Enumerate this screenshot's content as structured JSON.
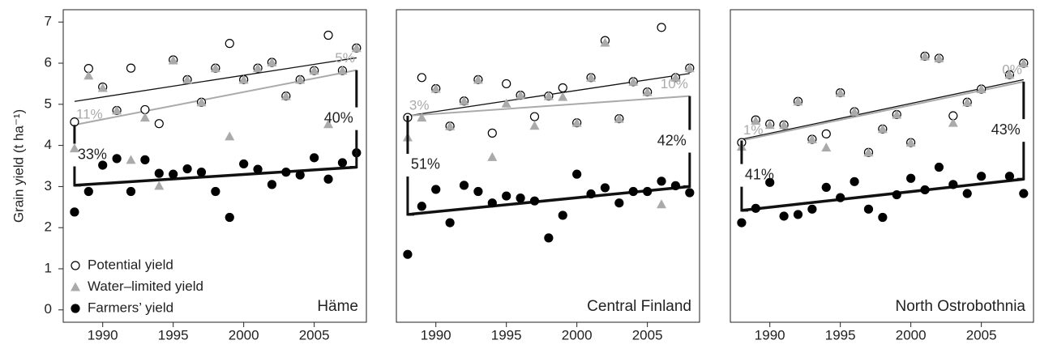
{
  "chart_data": [
    {
      "type": "scatter",
      "title": "Häme",
      "ylabel": "Grain yield (t ha⁻¹)",
      "legend": true,
      "x": [
        1988,
        1989,
        1990,
        1991,
        1992,
        1993,
        1994,
        1995,
        1996,
        1997,
        1998,
        1999,
        2000,
        2001,
        2002,
        2003,
        2004,
        2005,
        2006,
        2007,
        2008
      ],
      "xlim": [
        1987.2,
        2008.7
      ],
      "xticks": [
        1990,
        1995,
        2000,
        2005
      ],
      "ylim": [
        -0.3,
        7.3
      ],
      "yticks": [
        0,
        1,
        2,
        3,
        4,
        5,
        6,
        7
      ],
      "series": [
        {
          "name": "Potential yield",
          "color": "#000000",
          "marker": "open-circle",
          "trend": [
            5.07,
            6.13
          ],
          "values": [
            4.57,
            5.87,
            5.42,
            4.85,
            5.88,
            4.87,
            4.53,
            6.08,
            5.6,
            5.05,
            5.88,
            6.48,
            5.6,
            5.88,
            6.02,
            5.2,
            5.6,
            5.82,
            6.68,
            5.82,
            6.37
          ]
        },
        {
          "name": "Water–limited yield",
          "color": "#aaaaaa",
          "marker": "triangle",
          "trend": [
            4.5,
            5.83
          ],
          "values": [
            3.93,
            5.7,
            5.4,
            4.85,
            3.65,
            4.68,
            3.02,
            6.07,
            5.6,
            5.05,
            5.88,
            4.22,
            5.6,
            5.88,
            6.02,
            5.2,
            5.6,
            5.82,
            4.52,
            5.82,
            6.37
          ]
        },
        {
          "name": "Farmers’ yield",
          "color": "#000000",
          "marker": "filled-circle",
          "trend": [
            3.03,
            3.47
          ],
          "values": [
            2.38,
            2.88,
            3.52,
            3.68,
            2.88,
            3.65,
            3.32,
            3.3,
            3.43,
            3.35,
            2.88,
            2.25,
            3.55,
            3.42,
            3.05,
            3.35,
            3.28,
            3.7,
            3.18,
            3.58,
            3.82
          ]
        }
      ],
      "gap_labels": {
        "water": [
          "11%",
          "5%"
        ],
        "yield": [
          "33%",
          "40%"
        ]
      }
    },
    {
      "type": "scatter",
      "title": "Central Finland",
      "x": [
        1988,
        1989,
        1990,
        1991,
        1992,
        1993,
        1994,
        1995,
        1996,
        1997,
        1998,
        1999,
        2000,
        2001,
        2002,
        2003,
        2004,
        2005,
        2006,
        2007,
        2008
      ],
      "xlim": [
        1987.2,
        2008.7
      ],
      "xticks": [
        1990,
        1995,
        2000,
        2005
      ],
      "ylim": [
        -0.3,
        7.3
      ],
      "series": [
        {
          "color": "#000000",
          "marker": "open-circle",
          "trend": [
            4.72,
            5.75
          ],
          "values": [
            4.68,
            5.65,
            5.38,
            4.47,
            5.08,
            5.6,
            4.3,
            5.5,
            5.22,
            4.7,
            5.2,
            5.4,
            4.55,
            5.65,
            6.55,
            4.65,
            5.55,
            5.3,
            6.87,
            5.65,
            5.88
          ]
        },
        {
          "color": "#aaaaaa",
          "marker": "triangle",
          "trend": [
            4.72,
            5.2
          ],
          "values": [
            4.2,
            4.68,
            5.38,
            4.47,
            5.08,
            5.6,
            3.72,
            5.02,
            5.22,
            4.48,
            5.2,
            5.18,
            4.55,
            5.65,
            6.5,
            4.65,
            5.55,
            5.3,
            2.57,
            5.65,
            5.88
          ]
        },
        {
          "color": "#000000",
          "marker": "filled-circle",
          "trend": [
            2.32,
            3.0
          ],
          "values": [
            1.35,
            2.52,
            2.93,
            2.12,
            3.03,
            2.88,
            2.6,
            2.77,
            2.72,
            2.65,
            1.75,
            2.3,
            3.3,
            2.82,
            2.97,
            2.6,
            2.88,
            2.88,
            3.13,
            3.02,
            2.85
          ]
        }
      ],
      "gap_labels": {
        "water": [
          "3%",
          "10%"
        ],
        "yield": [
          "51%",
          "42%"
        ]
      }
    },
    {
      "type": "scatter",
      "title": "North Ostrobothnia",
      "x": [
        1988,
        1989,
        1990,
        1991,
        1992,
        1993,
        1994,
        1995,
        1996,
        1997,
        1998,
        1999,
        2000,
        2001,
        2002,
        2003,
        2004,
        2005,
        2006,
        2007,
        2008
      ],
      "xlim": [
        1987.2,
        2008.7
      ],
      "xticks": [
        1990,
        1995,
        2000,
        2005
      ],
      "ylim": [
        -0.3,
        7.3
      ],
      "series": [
        {
          "color": "#000000",
          "marker": "open-circle",
          "trend": [
            4.15,
            5.6
          ],
          "values": [
            4.07,
            4.62,
            4.52,
            4.5,
            5.07,
            4.15,
            4.28,
            5.28,
            4.82,
            3.83,
            4.4,
            4.75,
            4.07,
            6.17,
            6.12,
            4.72,
            5.05,
            5.37,
            null,
            5.72,
            6.0
          ]
        },
        {
          "color": "#aaaaaa",
          "marker": "triangle",
          "trend": [
            4.12,
            5.55
          ],
          "values": [
            3.97,
            4.6,
            4.5,
            4.5,
            5.07,
            4.15,
            3.95,
            5.28,
            4.82,
            3.83,
            4.4,
            4.75,
            4.07,
            6.17,
            6.12,
            4.55,
            5.05,
            5.37,
            null,
            5.72,
            6.0
          ]
        },
        {
          "color": "#000000",
          "marker": "filled-circle",
          "trend": [
            2.42,
            3.18
          ],
          "values": [
            2.12,
            2.47,
            3.1,
            2.28,
            2.32,
            2.45,
            2.98,
            2.73,
            3.12,
            2.45,
            2.25,
            2.8,
            3.2,
            2.92,
            3.47,
            3.05,
            2.83,
            3.25,
            null,
            3.25,
            2.83
          ]
        }
      ],
      "gap_labels": {
        "water": [
          "1%",
          "0%"
        ],
        "yield": [
          "41%",
          "43%"
        ]
      }
    }
  ]
}
